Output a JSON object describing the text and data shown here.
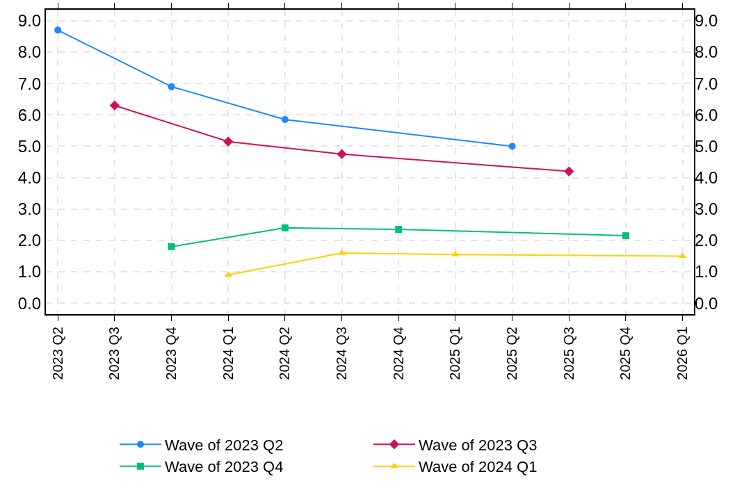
{
  "chart_data": {
    "type": "line",
    "categories": [
      "2023 Q2",
      "2023 Q3",
      "2023 Q4",
      "2024 Q1",
      "2024 Q2",
      "2024 Q3",
      "2024 Q4",
      "2025 Q1",
      "2025 Q2",
      "2025 Q3",
      "2025 Q4",
      "2026 Q1"
    ],
    "series": [
      {
        "name": "Wave of 2023 Q2",
        "color": "#1e88ff",
        "marker": "circle",
        "values": [
          8.7,
          null,
          6.9,
          null,
          5.85,
          null,
          null,
          null,
          5.0,
          null,
          null,
          null
        ]
      },
      {
        "name": "Wave of 2023 Q3",
        "color": "#d1105a",
        "marker": "diamond",
        "values": [
          null,
          6.3,
          null,
          5.15,
          null,
          4.75,
          null,
          null,
          null,
          4.2,
          null,
          null
        ]
      },
      {
        "name": "Wave of 2023 Q4",
        "color": "#00c07a",
        "marker": "square",
        "values": [
          null,
          null,
          1.8,
          null,
          2.4,
          null,
          2.35,
          null,
          null,
          null,
          2.15,
          null
        ]
      },
      {
        "name": "Wave of 2024 Q1",
        "color": "#ffd000",
        "marker": "triangle",
        "values": [
          null,
          null,
          null,
          0.9,
          null,
          1.6,
          null,
          1.55,
          null,
          null,
          null,
          1.5
        ]
      }
    ],
    "ylim": [
      -0.35,
      9.35
    ],
    "yticks": [
      {
        "value": 0,
        "label": "0.0"
      },
      {
        "value": 1,
        "label": "1.0"
      },
      {
        "value": 2,
        "label": "2.0"
      },
      {
        "value": 3,
        "label": "3.0"
      },
      {
        "value": 4,
        "label": "4.0"
      },
      {
        "value": 5,
        "label": "5.0"
      },
      {
        "value": 6,
        "label": "6.0"
      },
      {
        "value": 7,
        "label": "7.0"
      },
      {
        "value": 8,
        "label": "8.0"
      },
      {
        "value": 9,
        "label": "9.0"
      }
    ],
    "y2lim": [
      -0.35,
      9.35
    ],
    "y2ticks": [
      {
        "value": 0,
        "label": "0.0"
      },
      {
        "value": 1,
        "label": "1.0"
      },
      {
        "value": 2,
        "label": "2.0"
      },
      {
        "value": 3,
        "label": "3.0"
      },
      {
        "value": 4,
        "label": "4.0"
      },
      {
        "value": 5,
        "label": "5.0"
      },
      {
        "value": 6,
        "label": "6.0"
      },
      {
        "value": 7,
        "label": "7.0"
      },
      {
        "value": 8,
        "label": "8.0"
      },
      {
        "value": 9,
        "label": "9.0"
      }
    ],
    "grid": true,
    "legend": "bottom",
    "line_style": "solid"
  }
}
